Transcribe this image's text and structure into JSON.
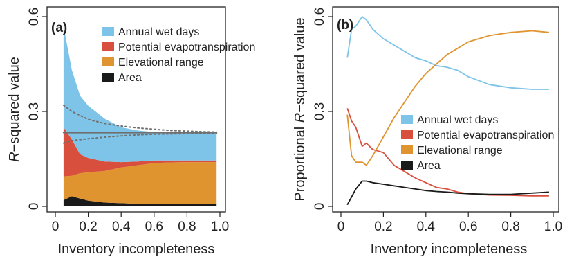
{
  "chart_data": [
    {
      "type": "area",
      "panel_label": "(a)",
      "xlabel": "Inventory incompleteness",
      "ylabel_italic": "R",
      "ylabel_rest": "−squared value",
      "xlim": [
        0,
        1.0
      ],
      "ylim": [
        0,
        0.6
      ],
      "xticks": [
        0,
        0.2,
        0.4,
        0.6,
        0.8,
        1.0
      ],
      "xtick_labels": [
        "0",
        "0.2",
        "0.4",
        "0.6",
        "0.8",
        "1.0"
      ],
      "yticks": [
        0,
        0.3,
        0.6
      ],
      "ytick_labels": [
        "0",
        "0.3",
        "0.6"
      ],
      "stacked": true,
      "legend_position": "top-left",
      "series": [
        {
          "name": "Area",
          "color": "#1a1a1a",
          "x": [
            0.05,
            0.1,
            0.15,
            0.2,
            0.3,
            0.4,
            0.5,
            0.6,
            0.7,
            0.8,
            0.9,
            0.98
          ],
          "values": [
            0.02,
            0.032,
            0.025,
            0.018,
            0.012,
            0.01,
            0.008,
            0.007,
            0.007,
            0.007,
            0.007,
            0.007
          ]
        },
        {
          "name": "Elevational range",
          "color": "#e0942f",
          "x": [
            0.05,
            0.1,
            0.15,
            0.2,
            0.3,
            0.4,
            0.5,
            0.6,
            0.7,
            0.8,
            0.9,
            0.98
          ],
          "values": [
            0.075,
            0.065,
            0.08,
            0.09,
            0.1,
            0.113,
            0.122,
            0.13,
            0.132,
            0.133,
            0.133,
            0.133
          ]
        },
        {
          "name": "Potential evapotranspiration",
          "color": "#d94f3d",
          "x": [
            0.05,
            0.1,
            0.15,
            0.2,
            0.3,
            0.4,
            0.5,
            0.6,
            0.7,
            0.8,
            0.9,
            0.98
          ],
          "values": [
            0.155,
            0.115,
            0.06,
            0.045,
            0.03,
            0.017,
            0.012,
            0.008,
            0.006,
            0.005,
            0.005,
            0.005
          ]
        },
        {
          "name": "Annual wet days",
          "color": "#7ec4e8",
          "x": [
            0.05,
            0.1,
            0.15,
            0.2,
            0.3,
            0.4,
            0.5,
            0.6,
            0.7,
            0.8,
            0.9,
            0.98
          ],
          "values": [
            0.32,
            0.22,
            0.185,
            0.165,
            0.135,
            0.11,
            0.098,
            0.09,
            0.088,
            0.088,
            0.088,
            0.088
          ]
        }
      ],
      "reference_lines": [
        {
          "style": "solid",
          "color": "#707070",
          "x": [
            0.05,
            0.98
          ],
          "y": [
            0.233,
            0.233
          ]
        },
        {
          "style": "dotted",
          "color": "#707070",
          "x": [
            0.05,
            0.1,
            0.2,
            0.3,
            0.4,
            0.5,
            0.6,
            0.7,
            0.8,
            0.9,
            0.98
          ],
          "y": [
            0.32,
            0.3,
            0.275,
            0.262,
            0.254,
            0.248,
            0.244,
            0.24,
            0.238,
            0.236,
            0.235
          ]
        },
        {
          "style": "dotted",
          "color": "#707070",
          "x": [
            0.05,
            0.1,
            0.2,
            0.3,
            0.4,
            0.5,
            0.6,
            0.7,
            0.8,
            0.9,
            0.98
          ],
          "y": [
            0.2,
            0.208,
            0.214,
            0.219,
            0.223,
            0.226,
            0.228,
            0.229,
            0.23,
            0.231,
            0.232
          ]
        }
      ]
    },
    {
      "type": "line",
      "panel_label": "(b)",
      "xlabel": "Inventory incompleteness",
      "ylabel_prefix": "Proportional ",
      "ylabel_italic": "R",
      "ylabel_rest": "−squared value",
      "xlim": [
        0,
        1.0
      ],
      "ylim": [
        0,
        0.6
      ],
      "xticks": [
        0,
        0.2,
        0.4,
        0.6,
        0.8,
        1.0
      ],
      "xtick_labels": [
        "0",
        "0.2",
        "0.4",
        "0.6",
        "0.8",
        "1.0"
      ],
      "yticks": [
        0,
        0.3,
        0.6
      ],
      "ytick_labels": [
        "0",
        "0.3",
        "0.6"
      ],
      "legend_position": "center-right",
      "series": [
        {
          "name": "Annual wet days",
          "color": "#7ec4e8",
          "x": [
            0.03,
            0.05,
            0.07,
            0.1,
            0.12,
            0.15,
            0.2,
            0.25,
            0.3,
            0.35,
            0.4,
            0.45,
            0.5,
            0.55,
            0.6,
            0.7,
            0.8,
            0.9,
            0.98
          ],
          "values": [
            0.47,
            0.56,
            0.57,
            0.6,
            0.59,
            0.56,
            0.53,
            0.51,
            0.49,
            0.47,
            0.46,
            0.445,
            0.44,
            0.43,
            0.41,
            0.385,
            0.375,
            0.37,
            0.37
          ]
        },
        {
          "name": "Potential evapotranspiration",
          "color": "#d94f3d",
          "x": [
            0.03,
            0.05,
            0.07,
            0.1,
            0.12,
            0.15,
            0.2,
            0.25,
            0.3,
            0.35,
            0.4,
            0.45,
            0.5,
            0.55,
            0.6,
            0.7,
            0.8,
            0.9,
            0.98
          ],
          "values": [
            0.31,
            0.27,
            0.25,
            0.19,
            0.2,
            0.18,
            0.17,
            0.13,
            0.11,
            0.09,
            0.075,
            0.06,
            0.055,
            0.045,
            0.04,
            0.036,
            0.035,
            0.033,
            0.033
          ]
        },
        {
          "name": "Elevational range",
          "color": "#e0942f",
          "x": [
            0.03,
            0.05,
            0.07,
            0.1,
            0.12,
            0.15,
            0.2,
            0.25,
            0.3,
            0.35,
            0.4,
            0.45,
            0.5,
            0.55,
            0.6,
            0.7,
            0.8,
            0.9,
            0.98
          ],
          "values": [
            0.29,
            0.16,
            0.14,
            0.14,
            0.13,
            0.16,
            0.22,
            0.28,
            0.33,
            0.38,
            0.42,
            0.45,
            0.48,
            0.5,
            0.52,
            0.54,
            0.55,
            0.555,
            0.55
          ]
        },
        {
          "name": "Area",
          "color": "#1a1a1a",
          "x": [
            0.03,
            0.05,
            0.07,
            0.1,
            0.12,
            0.15,
            0.2,
            0.25,
            0.3,
            0.35,
            0.4,
            0.45,
            0.5,
            0.55,
            0.6,
            0.7,
            0.8,
            0.9,
            0.98
          ],
          "values": [
            0.005,
            0.03,
            0.055,
            0.08,
            0.08,
            0.075,
            0.07,
            0.065,
            0.06,
            0.055,
            0.05,
            0.047,
            0.045,
            0.042,
            0.04,
            0.038,
            0.038,
            0.042,
            0.045
          ]
        }
      ]
    }
  ]
}
